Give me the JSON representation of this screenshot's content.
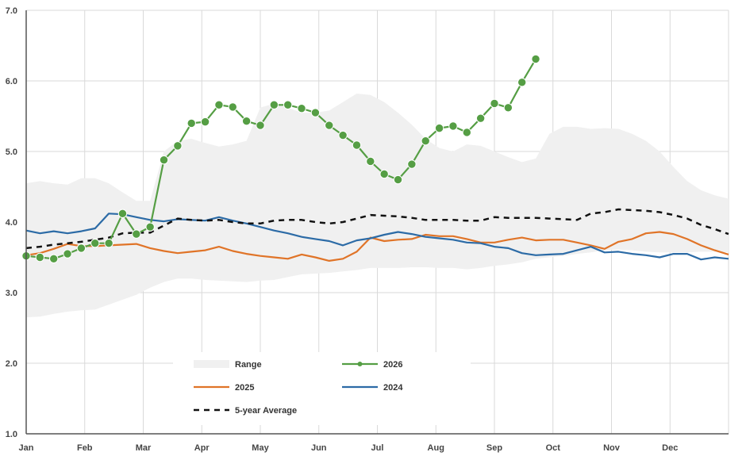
{
  "chart_data": {
    "type": "line",
    "ylim": [
      1.0,
      7.0
    ],
    "yticks": [
      "1.0",
      "2.0",
      "3.0",
      "4.0",
      "5.0",
      "6.0",
      "7.0"
    ],
    "x_labels": [
      "Jan",
      "Feb",
      "Mar",
      "Apr",
      "May",
      "Jun",
      "Jul",
      "Aug",
      "Sep",
      "Oct",
      "Nov",
      "Dec"
    ],
    "x_range": [
      1,
      52
    ],
    "grid": true,
    "legend_position": "bottom-center",
    "colors": {
      "range": "#f0f0f0",
      "y2026": "#559e44",
      "y2025": "#e07428",
      "y2024": "#2c6ba6",
      "avg": "#111111",
      "grid": "#d9d9d9",
      "axis": "#555555"
    },
    "range": {
      "name": "Range",
      "weeks": [
        1,
        2,
        3,
        4,
        5,
        6,
        7,
        8,
        9,
        10,
        11,
        12,
        13,
        14,
        15,
        16,
        17,
        18,
        19,
        20,
        21,
        22,
        23,
        24,
        25,
        26,
        27,
        28,
        29,
        30,
        31,
        32,
        33,
        34,
        35,
        36,
        37,
        38,
        39,
        40,
        41,
        42,
        43,
        44,
        45,
        46,
        47,
        48,
        49,
        50,
        51,
        52
      ],
      "low": [
        2.65,
        2.66,
        2.7,
        2.73,
        2.75,
        2.76,
        2.83,
        2.9,
        2.97,
        3.07,
        3.15,
        3.2,
        3.2,
        3.18,
        3.17,
        3.16,
        3.15,
        3.17,
        3.18,
        3.22,
        3.26,
        3.27,
        3.28,
        3.3,
        3.32,
        3.35,
        3.35,
        3.35,
        3.36,
        3.36,
        3.35,
        3.35,
        3.33,
        3.35,
        3.38,
        3.4,
        3.43,
        3.48,
        3.5,
        3.52,
        3.55,
        3.57,
        3.6,
        3.61,
        3.6,
        3.58,
        3.57,
        3.57,
        3.57,
        3.58,
        3.58,
        3.57
      ],
      "high": [
        4.55,
        4.58,
        4.55,
        4.53,
        4.62,
        4.62,
        4.55,
        4.42,
        4.3,
        4.3,
        5.0,
        5.15,
        5.18,
        5.12,
        5.07,
        5.1,
        5.15,
        5.62,
        5.68,
        5.62,
        5.55,
        5.55,
        5.58,
        5.7,
        5.82,
        5.8,
        5.7,
        5.55,
        5.38,
        5.18,
        5.05,
        5.0,
        5.1,
        5.08,
        5.0,
        4.92,
        4.85,
        4.9,
        5.25,
        5.35,
        5.35,
        5.32,
        5.33,
        5.32,
        5.25,
        5.15,
        5.0,
        4.78,
        4.58,
        4.45,
        4.38,
        4.33
      ]
    },
    "series": [
      {
        "name": "2026",
        "markers": true,
        "weeks": [
          1,
          2,
          3,
          4,
          5,
          6,
          7,
          8,
          9,
          10,
          11,
          12,
          13,
          14,
          15,
          16,
          17,
          18,
          19,
          20,
          21,
          22,
          23,
          24,
          25,
          26,
          27,
          28,
          29,
          30,
          31,
          32,
          33,
          34,
          35,
          36,
          37,
          38
        ],
        "values": [
          3.52,
          3.5,
          3.48,
          3.55,
          3.63,
          3.7,
          3.7,
          4.12,
          3.83,
          3.93,
          4.88,
          5.08,
          5.4,
          5.42,
          5.66,
          5.63,
          5.43,
          5.37,
          5.66,
          5.66,
          5.61,
          5.55,
          5.37,
          5.23,
          5.09,
          4.86,
          4.68,
          4.6,
          4.82,
          5.15,
          5.33,
          5.36,
          5.27,
          5.47,
          5.68,
          5.62,
          5.98,
          6.31
        ]
      },
      {
        "name": "2025",
        "markers": false,
        "weeks": [
          1,
          2,
          3,
          4,
          5,
          6,
          7,
          8,
          9,
          10,
          11,
          12,
          13,
          14,
          15,
          16,
          17,
          18,
          19,
          20,
          21,
          22,
          23,
          24,
          25,
          26,
          27,
          28,
          29,
          30,
          31,
          32,
          33,
          34,
          35,
          36,
          37,
          38,
          39,
          40,
          41,
          42,
          43,
          44,
          45,
          46,
          47,
          48,
          49,
          50,
          51,
          52
        ],
        "values": [
          3.53,
          3.56,
          3.62,
          3.69,
          3.66,
          3.66,
          3.67,
          3.68,
          3.69,
          3.63,
          3.59,
          3.56,
          3.58,
          3.6,
          3.65,
          3.59,
          3.55,
          3.52,
          3.5,
          3.48,
          3.54,
          3.5,
          3.45,
          3.48,
          3.58,
          3.78,
          3.73,
          3.75,
          3.76,
          3.82,
          3.8,
          3.8,
          3.76,
          3.71,
          3.71,
          3.75,
          3.78,
          3.74,
          3.75,
          3.75,
          3.71,
          3.67,
          3.62,
          3.72,
          3.76,
          3.84,
          3.86,
          3.83,
          3.76,
          3.67,
          3.6,
          3.54
        ]
      },
      {
        "name": "2024",
        "markers": false,
        "weeks": [
          1,
          2,
          3,
          4,
          5,
          6,
          7,
          8,
          9,
          10,
          11,
          12,
          13,
          14,
          15,
          16,
          17,
          18,
          19,
          20,
          21,
          22,
          23,
          24,
          25,
          26,
          27,
          28,
          29,
          30,
          31,
          32,
          33,
          34,
          35,
          36,
          37,
          38,
          39,
          40,
          41,
          42,
          43,
          44,
          45,
          46,
          47,
          48,
          49,
          50,
          51,
          52
        ],
        "values": [
          3.88,
          3.84,
          3.87,
          3.84,
          3.87,
          3.91,
          4.12,
          4.11,
          4.07,
          4.03,
          4.01,
          4.04,
          4.03,
          4.02,
          4.07,
          4.02,
          3.98,
          3.93,
          3.88,
          3.84,
          3.79,
          3.76,
          3.73,
          3.67,
          3.74,
          3.77,
          3.82,
          3.86,
          3.83,
          3.79,
          3.77,
          3.75,
          3.71,
          3.7,
          3.65,
          3.63,
          3.56,
          3.53,
          3.54,
          3.55,
          3.6,
          3.65,
          3.57,
          3.58,
          3.55,
          3.53,
          3.5,
          3.55,
          3.55,
          3.47,
          3.5,
          3.48
        ]
      },
      {
        "name": "5-year Average",
        "markers": false,
        "dashed": true,
        "weeks": [
          1,
          2,
          3,
          4,
          5,
          6,
          7,
          8,
          9,
          10,
          11,
          12,
          13,
          14,
          15,
          16,
          17,
          18,
          19,
          20,
          21,
          22,
          23,
          24,
          25,
          26,
          27,
          28,
          29,
          30,
          31,
          32,
          33,
          34,
          35,
          36,
          37,
          38,
          39,
          40,
          41,
          42,
          43,
          44,
          45,
          46,
          47,
          48,
          49,
          50,
          51,
          52
        ],
        "values": [
          3.63,
          3.65,
          3.68,
          3.7,
          3.72,
          3.75,
          3.78,
          3.84,
          3.85,
          3.85,
          3.95,
          4.05,
          4.03,
          4.02,
          4.03,
          4.0,
          3.98,
          3.98,
          4.02,
          4.03,
          4.03,
          4.0,
          3.98,
          4.0,
          4.05,
          4.1,
          4.09,
          4.08,
          4.06,
          4.03,
          4.03,
          4.03,
          4.02,
          4.02,
          4.07,
          4.06,
          4.06,
          4.06,
          4.05,
          4.04,
          4.03,
          4.12,
          4.14,
          4.18,
          4.17,
          4.16,
          4.14,
          4.1,
          4.05,
          3.96,
          3.9,
          3.83
        ]
      }
    ]
  }
}
